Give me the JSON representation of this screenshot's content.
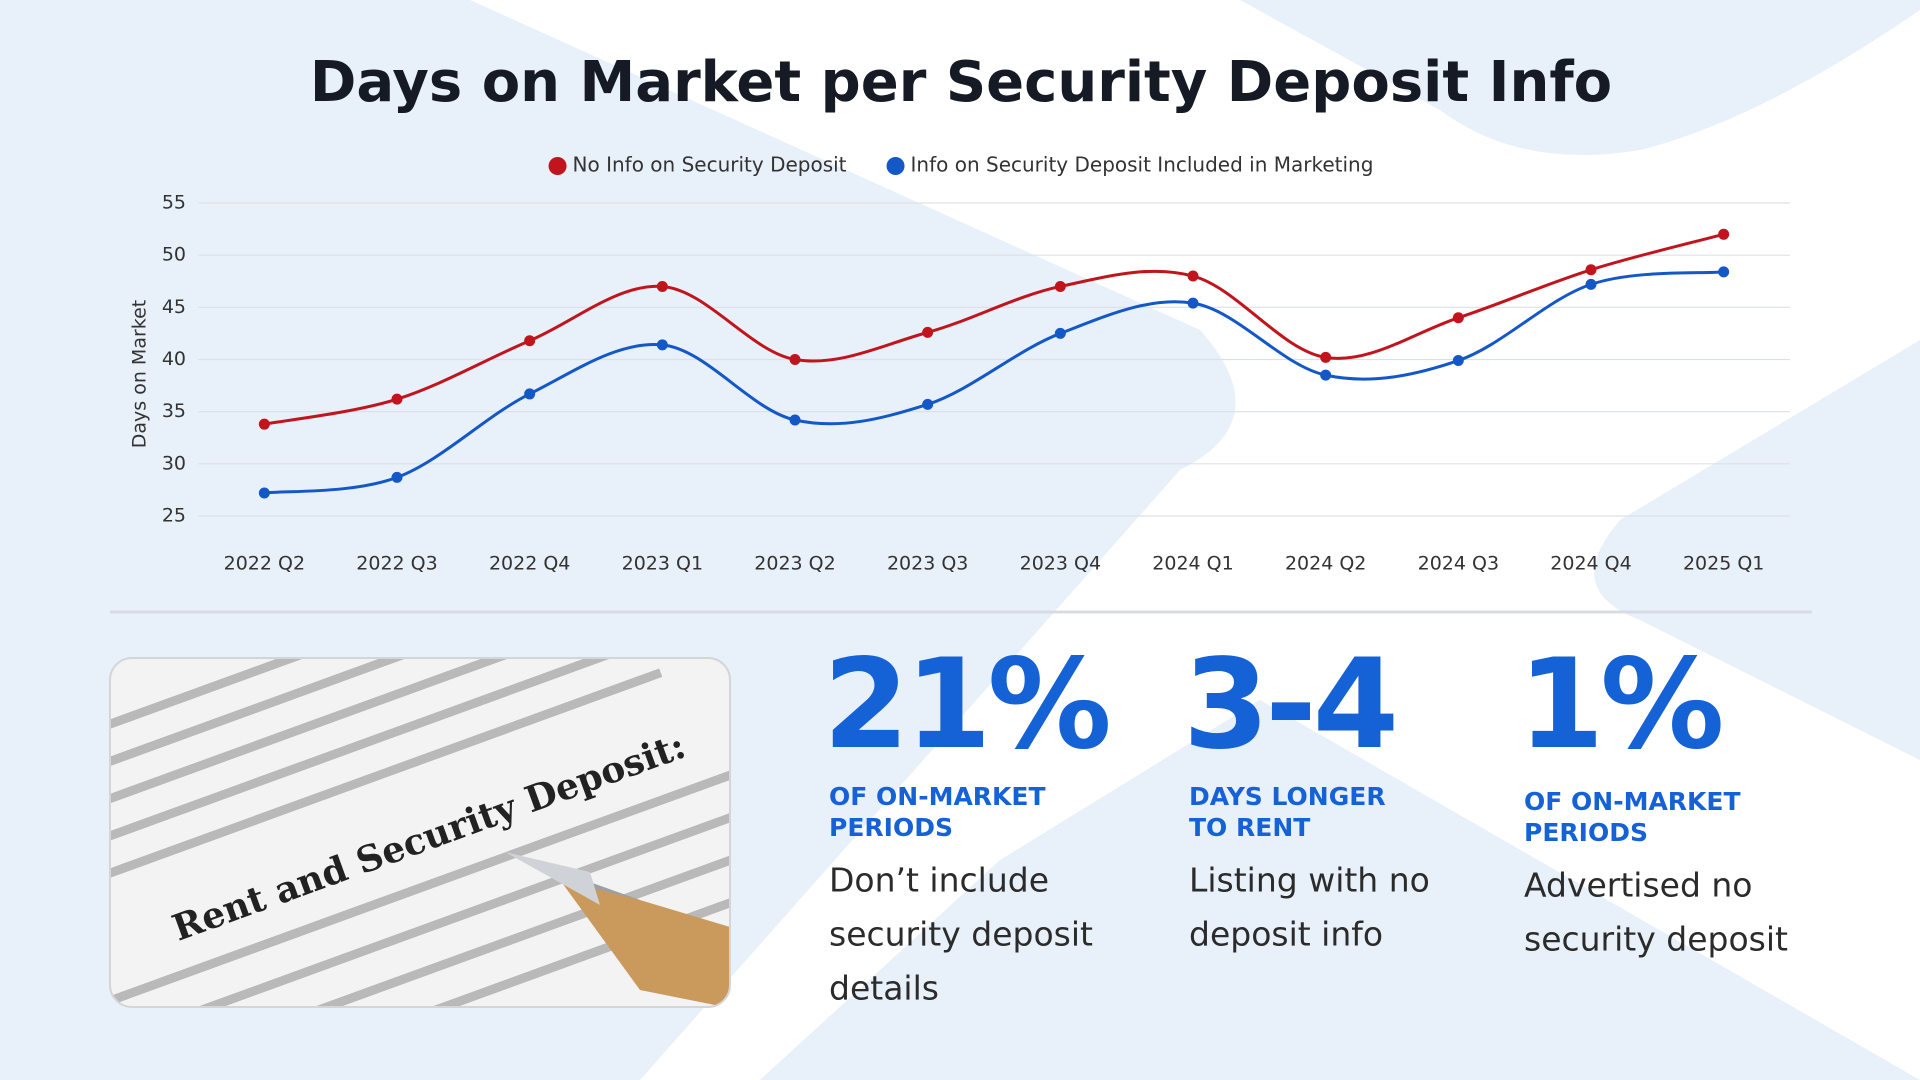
{
  "chart_data": {
    "type": "line",
    "title": "Days on Market per Security Deposit Info",
    "y_label": "Days on Market",
    "categories": [
      "2022 Q2",
      "2022 Q3",
      "2022 Q4",
      "2023 Q1",
      "2023 Q2",
      "2023 Q3",
      "2023 Q4",
      "2024 Q1",
      "2024 Q2",
      "2024 Q3",
      "2024 Q4",
      "2025 Q1"
    ],
    "series": [
      {
        "name": "No Info on Security Deposit",
        "color": "#c0151d",
        "values": [
          33.8,
          36.2,
          41.8,
          47,
          40,
          42.6,
          47,
          48,
          40.2,
          44,
          48.6,
          52
        ]
      },
      {
        "name": "Info on Security Deposit Included in Marketing",
        "color": "#1458c8",
        "values": [
          27.2,
          28.7,
          36.7,
          41.4,
          34.2,
          35.7,
          42.5,
          45.4,
          38.5,
          39.9,
          47.2,
          48.4
        ]
      }
    ],
    "ylim": [
      25,
      55
    ],
    "yticks": [
      25,
      30,
      35,
      40,
      45,
      50,
      55
    ],
    "grid": true,
    "legend": "top"
  },
  "image_text": "Rent and Security Deposit:",
  "stats": [
    {
      "figure": "21%",
      "headline_lines": [
        "OF ON-MARKET",
        "PERIODS"
      ],
      "description_lines": [
        "Don’t include",
        "security deposit",
        "details"
      ]
    },
    {
      "figure": "3-4",
      "headline_lines": [
        "DAYS LONGER",
        "TO RENT"
      ],
      "description_lines": [
        "Listing with no",
        "deposit info"
      ]
    },
    {
      "figure": "1%",
      "headline_lines": [
        "OF ON-MARKET",
        "PERIODS"
      ],
      "description_lines": [
        "Advertised no",
        "security deposit"
      ]
    }
  ]
}
